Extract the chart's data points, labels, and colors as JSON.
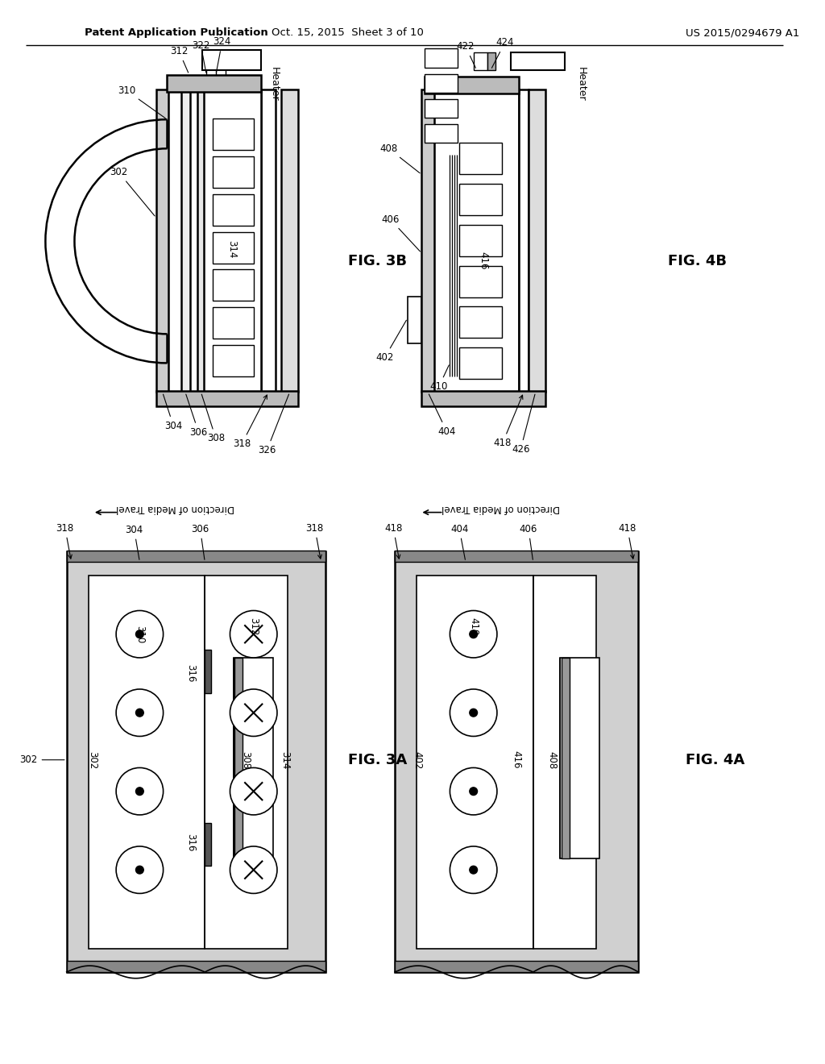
{
  "header_left": "Patent Application Publication",
  "header_center": "Oct. 15, 2015  Sheet 3 of 10",
  "header_right": "US 2015/0294679 A1",
  "background": "#ffffff"
}
